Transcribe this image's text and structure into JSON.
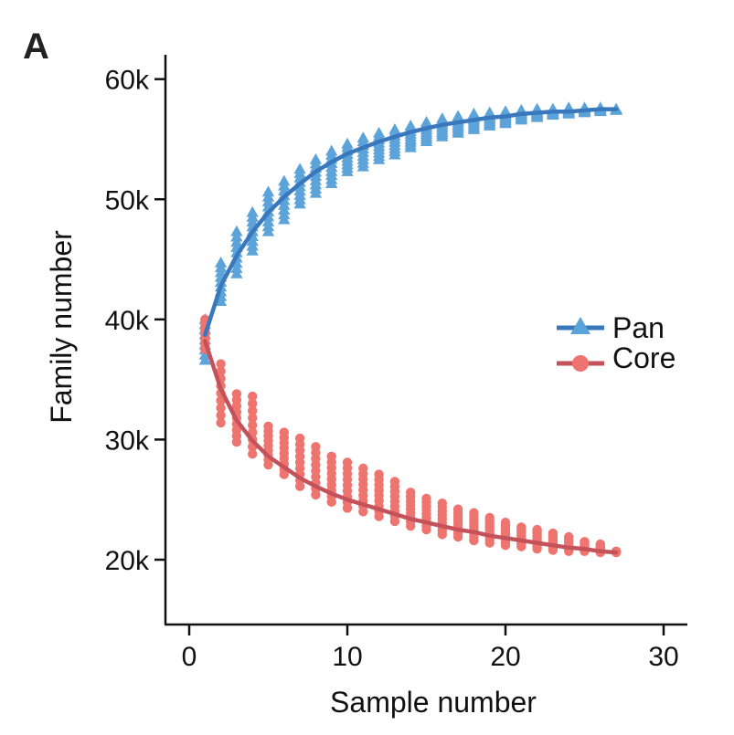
{
  "panel_label": "A",
  "colors": {
    "pan_points": "#5ba3d9",
    "pan_line": "#3a78bd",
    "core_points": "#ee7470",
    "core_line": "#c4525a",
    "axis": "#111111"
  },
  "chart_data": {
    "type": "scatter",
    "xlabel": "Sample number",
    "ylabel": "Family number",
    "xlim": [
      -1.5,
      31.5
    ],
    "ylim": [
      15000,
      62000
    ],
    "xticks": [
      0,
      10,
      20,
      30
    ],
    "xtick_labels": [
      "0",
      "10",
      "20",
      "30"
    ],
    "yticks": [
      20000,
      30000,
      40000,
      50000,
      60000
    ],
    "ytick_labels": [
      "20k",
      "30k",
      "40k",
      "50k",
      "60k"
    ],
    "grid": false,
    "legend_position": "right",
    "series": [
      {
        "name": "Pan",
        "marker": "triangle",
        "points_by_x": [
          {
            "x": 1,
            "min": 36600,
            "max": 40000
          },
          {
            "x": 2,
            "min": 41500,
            "max": 44700
          },
          {
            "x": 3,
            "min": 43800,
            "max": 47300
          },
          {
            "x": 4,
            "min": 45700,
            "max": 48900
          },
          {
            "x": 5,
            "min": 47300,
            "max": 50600
          },
          {
            "x": 6,
            "min": 48300,
            "max": 51500
          },
          {
            "x": 7,
            "min": 49600,
            "max": 52500
          },
          {
            "x": 8,
            "min": 50500,
            "max": 53300
          },
          {
            "x": 9,
            "min": 51300,
            "max": 54000
          },
          {
            "x": 10,
            "min": 52300,
            "max": 54600
          },
          {
            "x": 11,
            "min": 52700,
            "max": 55100
          },
          {
            "x": 12,
            "min": 53300,
            "max": 55500
          },
          {
            "x": 13,
            "min": 53700,
            "max": 55800
          },
          {
            "x": 14,
            "min": 54300,
            "max": 56100
          },
          {
            "x": 15,
            "min": 54800,
            "max": 56400
          },
          {
            "x": 16,
            "min": 55200,
            "max": 56700
          },
          {
            "x": 17,
            "min": 55500,
            "max": 56900
          },
          {
            "x": 18,
            "min": 55800,
            "max": 57100
          },
          {
            "x": 19,
            "min": 56100,
            "max": 57200
          },
          {
            "x": 20,
            "min": 56300,
            "max": 57300
          },
          {
            "x": 21,
            "min": 56600,
            "max": 57400
          },
          {
            "x": 22,
            "min": 56800,
            "max": 57500
          },
          {
            "x": 23,
            "min": 57000,
            "max": 57500
          },
          {
            "x": 24,
            "min": 57100,
            "max": 57600
          },
          {
            "x": 25,
            "min": 57200,
            "max": 57600
          },
          {
            "x": 26,
            "min": 57300,
            "max": 57600
          },
          {
            "x": 27,
            "min": 57400,
            "max": 57500
          }
        ],
        "fit": [
          [
            1,
            38700
          ],
          [
            2,
            42800
          ],
          [
            3,
            45300
          ],
          [
            4,
            47300
          ],
          [
            5,
            48900
          ],
          [
            6,
            50200
          ],
          [
            7,
            51300
          ],
          [
            8,
            52300
          ],
          [
            9,
            53100
          ],
          [
            10,
            53800
          ],
          [
            11,
            54300
          ],
          [
            12,
            54800
          ],
          [
            13,
            55200
          ],
          [
            14,
            55600
          ],
          [
            15,
            55900
          ],
          [
            16,
            56200
          ],
          [
            17,
            56400
          ],
          [
            18,
            56600
          ],
          [
            19,
            56800
          ],
          [
            20,
            56900
          ],
          [
            21,
            57100
          ],
          [
            22,
            57200
          ],
          [
            23,
            57300
          ],
          [
            24,
            57300
          ],
          [
            25,
            57400
          ],
          [
            26,
            57500
          ],
          [
            27,
            57500
          ]
        ]
      },
      {
        "name": "Core",
        "marker": "circle",
        "points_by_x": [
          {
            "x": 1,
            "min": 37500,
            "max": 40000
          },
          {
            "x": 2,
            "min": 31400,
            "max": 36300
          },
          {
            "x": 3,
            "min": 29800,
            "max": 33800
          },
          {
            "x": 4,
            "min": 28800,
            "max": 33600
          },
          {
            "x": 5,
            "min": 27900,
            "max": 31100
          },
          {
            "x": 6,
            "min": 27100,
            "max": 30600
          },
          {
            "x": 7,
            "min": 26100,
            "max": 30100
          },
          {
            "x": 8,
            "min": 25400,
            "max": 29400
          },
          {
            "x": 9,
            "min": 24800,
            "max": 28600
          },
          {
            "x": 10,
            "min": 24300,
            "max": 28100
          },
          {
            "x": 11,
            "min": 24000,
            "max": 27600
          },
          {
            "x": 12,
            "min": 23600,
            "max": 27100
          },
          {
            "x": 13,
            "min": 23200,
            "max": 26500
          },
          {
            "x": 14,
            "min": 22800,
            "max": 25600
          },
          {
            "x": 15,
            "min": 22500,
            "max": 25100
          },
          {
            "x": 16,
            "min": 22100,
            "max": 24700
          },
          {
            "x": 17,
            "min": 21900,
            "max": 24200
          },
          {
            "x": 18,
            "min": 21600,
            "max": 23900
          },
          {
            "x": 19,
            "min": 21400,
            "max": 23500
          },
          {
            "x": 20,
            "min": 21200,
            "max": 23100
          },
          {
            "x": 21,
            "min": 21100,
            "max": 22700
          },
          {
            "x": 22,
            "min": 20900,
            "max": 22500
          },
          {
            "x": 23,
            "min": 20800,
            "max": 22200
          },
          {
            "x": 24,
            "min": 20700,
            "max": 21900
          },
          {
            "x": 25,
            "min": 20700,
            "max": 21500
          },
          {
            "x": 26,
            "min": 20600,
            "max": 21300
          },
          {
            "x": 27,
            "min": 20600,
            "max": 20700
          }
        ],
        "fit": [
          [
            1,
            38200
          ],
          [
            2,
            34200
          ],
          [
            3,
            31600
          ],
          [
            4,
            29900
          ],
          [
            5,
            28600
          ],
          [
            6,
            27700
          ],
          [
            7,
            26800
          ],
          [
            8,
            26100
          ],
          [
            9,
            25500
          ],
          [
            10,
            25000
          ],
          [
            11,
            24600
          ],
          [
            12,
            24200
          ],
          [
            13,
            23800
          ],
          [
            14,
            23400
          ],
          [
            15,
            23100
          ],
          [
            16,
            22800
          ],
          [
            17,
            22500
          ],
          [
            18,
            22300
          ],
          [
            19,
            22000
          ],
          [
            20,
            21800
          ],
          [
            21,
            21600
          ],
          [
            22,
            21400
          ],
          [
            23,
            21200
          ],
          [
            24,
            21000
          ],
          [
            25,
            20900
          ],
          [
            26,
            20700
          ],
          [
            27,
            20600
          ]
        ]
      }
    ]
  }
}
